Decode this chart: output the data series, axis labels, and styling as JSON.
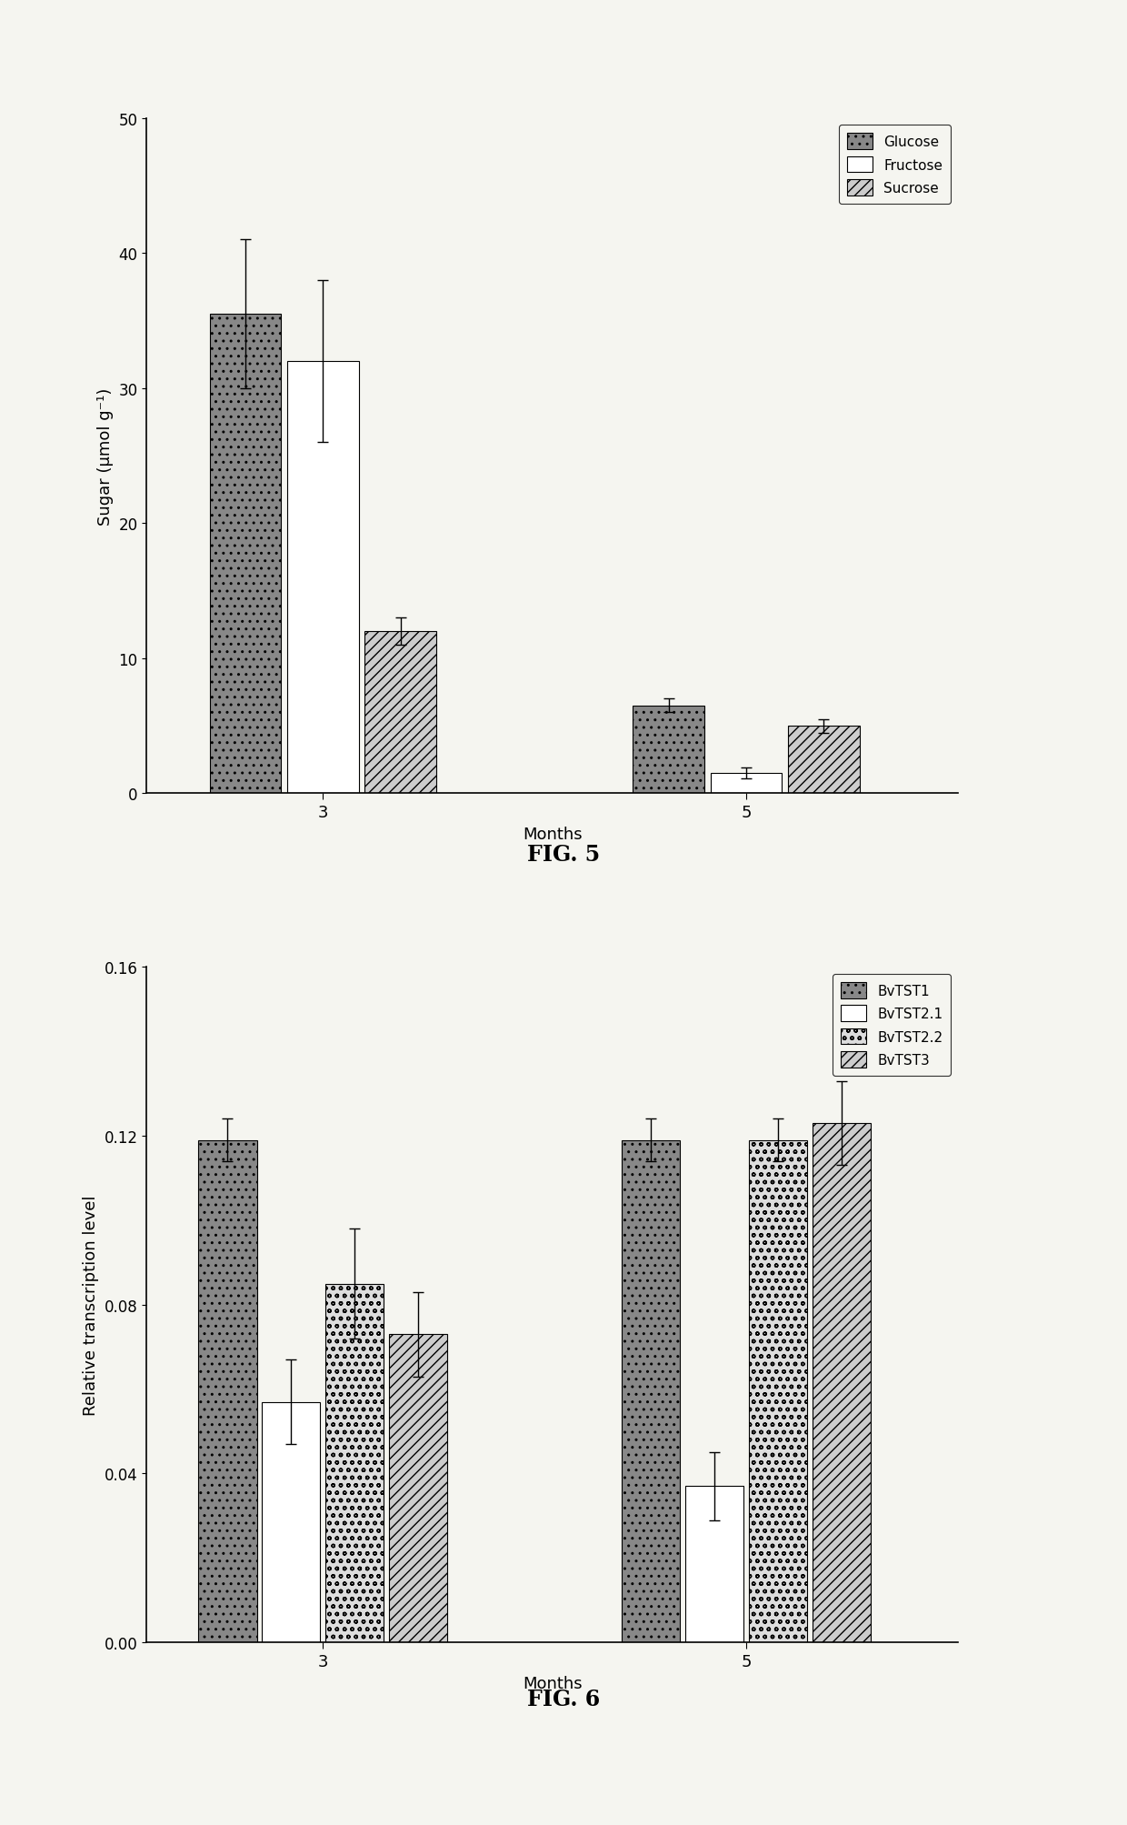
{
  "fig5": {
    "title": "FIG. 5",
    "xlabel": "Months",
    "ylabel": "Sugar (μmol g⁻¹)",
    "ylim": [
      0,
      50
    ],
    "yticks": [
      0,
      10,
      20,
      30,
      40,
      50
    ],
    "months": [
      3,
      5
    ],
    "series": {
      "Glucose": {
        "values": [
          35.5,
          6.5
        ],
        "errors": [
          5.5,
          0.5
        ],
        "color": "#888888",
        "hatch": ".."
      },
      "Fructose": {
        "values": [
          32.0,
          1.5
        ],
        "errors": [
          6.0,
          0.4
        ],
        "color": "#ffffff",
        "hatch": ""
      },
      "Sucrose": {
        "values": [
          12.0,
          5.0
        ],
        "errors": [
          1.0,
          0.5
        ],
        "color": "#cccccc",
        "hatch": "///"
      }
    },
    "series_order": [
      "Glucose",
      "Fructose",
      "Sucrose"
    ]
  },
  "fig6": {
    "title": "FIG. 6",
    "xlabel": "Months",
    "ylabel": "Relative transcription level",
    "ylim": [
      0.0,
      0.16
    ],
    "yticks": [
      0.0,
      0.04,
      0.08,
      0.12,
      0.16
    ],
    "months": [
      3,
      5
    ],
    "series": {
      "BvTST1": {
        "values": [
          0.119,
          0.119
        ],
        "errors": [
          0.005,
          0.005
        ],
        "color": "#888888",
        "hatch": ".."
      },
      "BvTST2.1": {
        "values": [
          0.057,
          0.037
        ],
        "errors": [
          0.01,
          0.008
        ],
        "color": "#ffffff",
        "hatch": ""
      },
      "BvTST2.2": {
        "values": [
          0.085,
          0.119
        ],
        "errors": [
          0.013,
          0.005
        ],
        "color": "#dddddd",
        "hatch": "oo"
      },
      "BvTST3": {
        "values": [
          0.073,
          0.123
        ],
        "errors": [
          0.01,
          0.01
        ],
        "color": "#cccccc",
        "hatch": "///"
      }
    },
    "series_order": [
      "BvTST1",
      "BvTST2.1",
      "BvTST2.2",
      "BvTST3"
    ]
  },
  "background_color": "#f5f5f0",
  "chart_bg": "#f5f5f0"
}
